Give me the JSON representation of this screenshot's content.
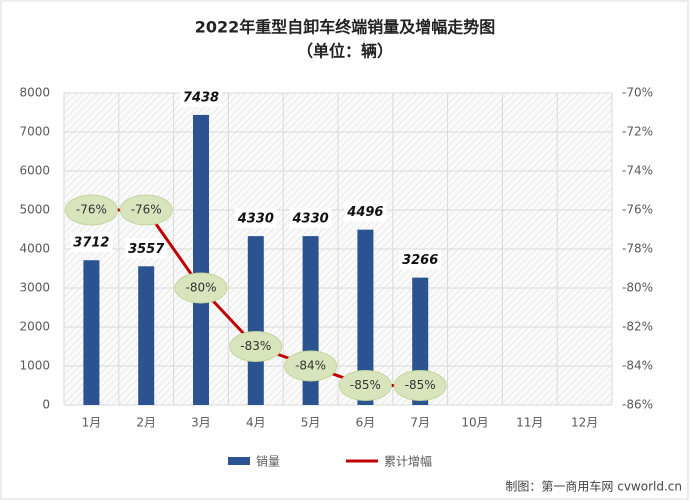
{
  "chart_data": {
    "type": "bar_line",
    "title": "2022年重型自卸车终端销量及增幅走势图",
    "subtitle": "（单位：辆）",
    "source": "制图：第一商用车网 cvworld.cn",
    "categories": [
      "1月",
      "2月",
      "3月",
      "4月",
      "5月",
      "6月",
      "7月",
      "10月",
      "11月",
      "12月"
    ],
    "series": [
      {
        "name": "销量",
        "type": "bar",
        "color": "#2b5291",
        "values": [
          3712,
          3557,
          7438,
          4330,
          4330,
          4496,
          3266,
          null,
          null,
          null
        ]
      },
      {
        "name": "累计增幅",
        "type": "line",
        "axis": "y2",
        "color": "#c00000",
        "values": [
          -76,
          -76,
          -80,
          -83,
          -84,
          -85,
          -85,
          null,
          null,
          null
        ],
        "value_labels": [
          "-76%",
          "-76%",
          "-80%",
          "-83%",
          "-84%",
          "-85%",
          "-85%",
          null,
          null,
          null
        ]
      }
    ],
    "ylim": [
      0,
      8000
    ],
    "yticks": [
      0,
      1000,
      2000,
      3000,
      4000,
      5000,
      6000,
      7000,
      8000
    ],
    "y2lim": [
      -86,
      -70
    ],
    "y2ticks": [
      {
        "value": -86,
        "label": "-86%"
      },
      {
        "value": -84,
        "label": "-84%"
      },
      {
        "value": -82,
        "label": "-82%"
      },
      {
        "value": -80,
        "label": "-80%"
      },
      {
        "value": -78,
        "label": "-78%"
      },
      {
        "value": -76,
        "label": "-76%"
      },
      {
        "value": -74,
        "label": "-74%"
      },
      {
        "value": -72,
        "label": "-72%"
      },
      {
        "value": -70,
        "label": "-70%"
      }
    ],
    "grid": true
  }
}
